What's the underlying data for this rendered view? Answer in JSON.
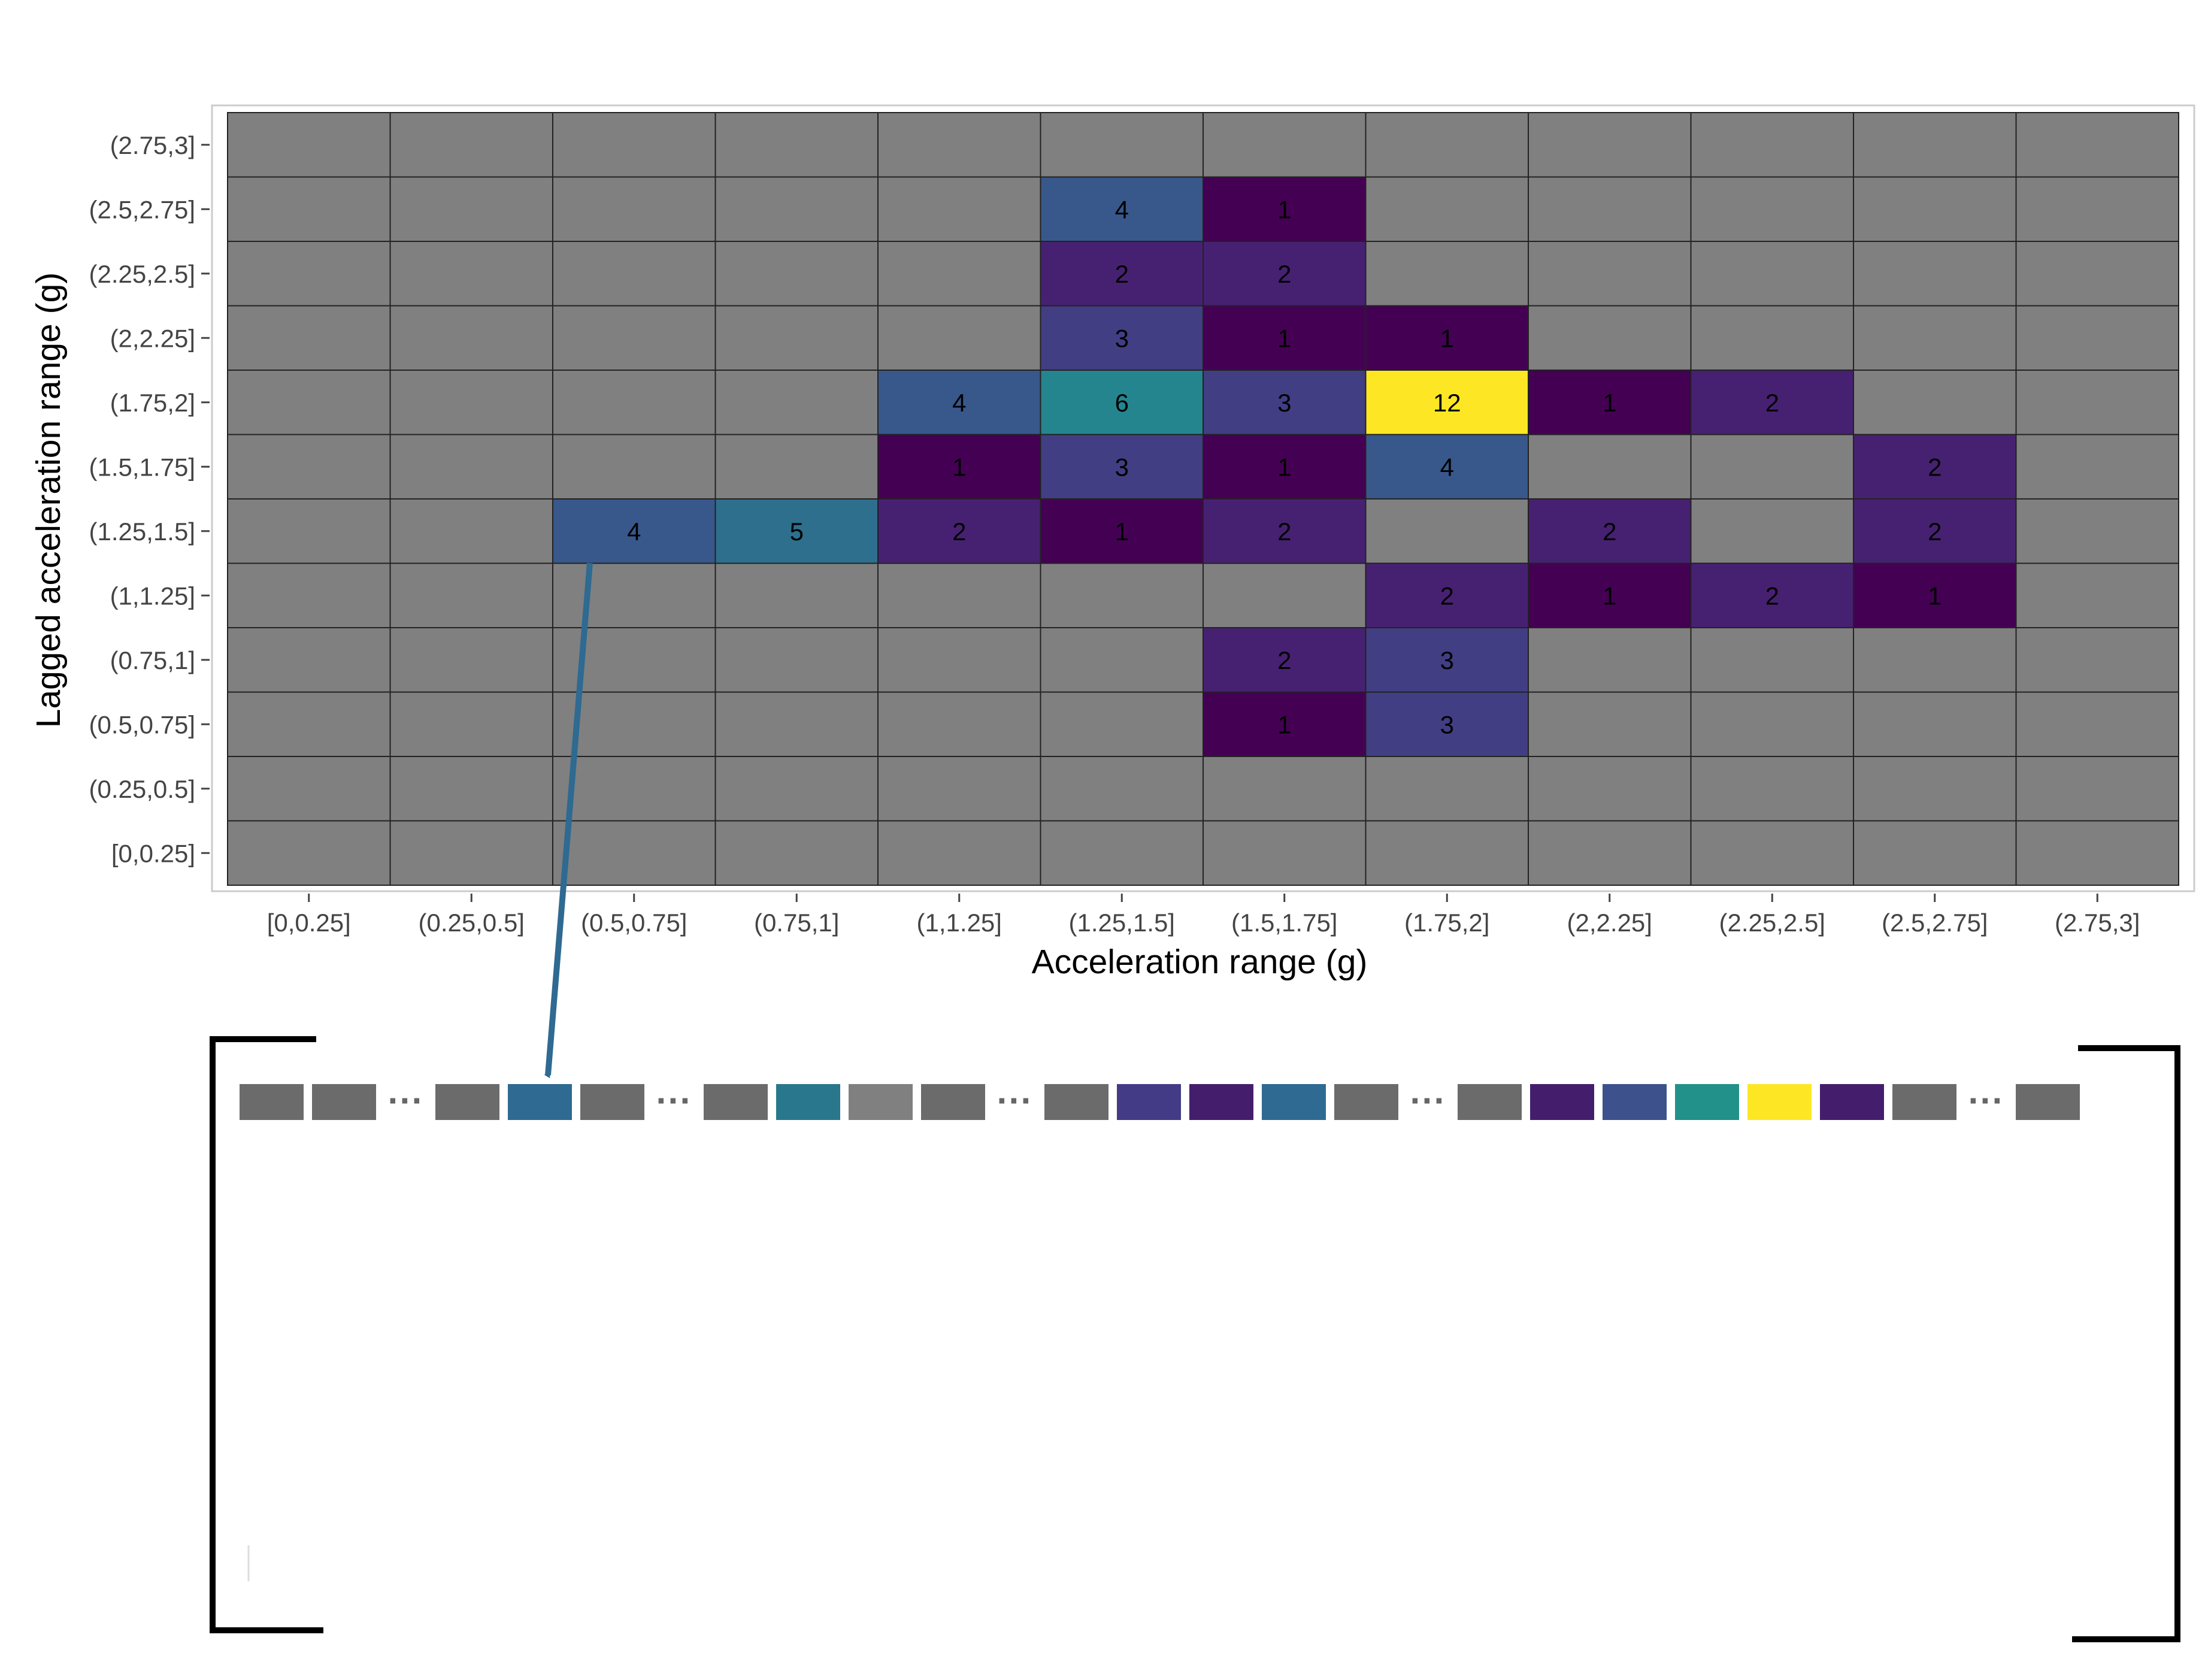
{
  "chart_data": {
    "type": "heatmap",
    "title": "",
    "xlabel": "Acceleration range (g)",
    "ylabel": "Lagged acceleration range (g)",
    "x_categories": [
      "[0,0.25]",
      "(0.25,0.5]",
      "(0.5,0.75]",
      "(0.75,1]",
      "(1,1.25]",
      "(1.25,1.5]",
      "(1.5,1.75]",
      "(1.75,2]",
      "(2,2.25]",
      "(2.25,2.5]",
      "(2.5,2.75]",
      "(2.75,3]"
    ],
    "y_categories": [
      "[0,0.25]",
      "(0.25,0.5]",
      "(0.5,0.75]",
      "(0.75,1]",
      "(1,1.25]",
      "(1.25,1.5]",
      "(1.5,1.75]",
      "(1.75,2]",
      "(2,2.25]",
      "(2.25,2.5]",
      "(2.5,2.75]",
      "(2.75,3]"
    ],
    "empty_color": "#808080",
    "colormap": "viridis",
    "value_range": [
      1,
      12
    ],
    "cells": [
      {
        "x": "(1.25,1.5]",
        "y": "(2.5,2.75]",
        "value": 4
      },
      {
        "x": "(1.5,1.75]",
        "y": "(2.5,2.75]",
        "value": 1
      },
      {
        "x": "(1.25,1.5]",
        "y": "(2.25,2.5]",
        "value": 2
      },
      {
        "x": "(1.5,1.75]",
        "y": "(2.25,2.5]",
        "value": 2
      },
      {
        "x": "(1.25,1.5]",
        "y": "(2,2.25]",
        "value": 3
      },
      {
        "x": "(1.5,1.75]",
        "y": "(2,2.25]",
        "value": 1
      },
      {
        "x": "(1.75,2]",
        "y": "(2,2.25]",
        "value": 1
      },
      {
        "x": "(1,1.25]",
        "y": "(1.75,2]",
        "value": 4
      },
      {
        "x": "(1.25,1.5]",
        "y": "(1.75,2]",
        "value": 6
      },
      {
        "x": "(1.5,1.75]",
        "y": "(1.75,2]",
        "value": 3
      },
      {
        "x": "(1.75,2]",
        "y": "(1.75,2]",
        "value": 12
      },
      {
        "x": "(2,2.25]",
        "y": "(1.75,2]",
        "value": 1
      },
      {
        "x": "(2.25,2.5]",
        "y": "(1.75,2]",
        "value": 2
      },
      {
        "x": "(1,1.25]",
        "y": "(1.5,1.75]",
        "value": 1
      },
      {
        "x": "(1.25,1.5]",
        "y": "(1.5,1.75]",
        "value": 3
      },
      {
        "x": "(1.5,1.75]",
        "y": "(1.5,1.75]",
        "value": 1
      },
      {
        "x": "(1.75,2]",
        "y": "(1.5,1.75]",
        "value": 4
      },
      {
        "x": "(2.5,2.75]",
        "y": "(1.5,1.75]",
        "value": 2
      },
      {
        "x": "(0.5,0.75]",
        "y": "(1.25,1.5]",
        "value": 4
      },
      {
        "x": "(0.75,1]",
        "y": "(1.25,1.5]",
        "value": 5
      },
      {
        "x": "(1,1.25]",
        "y": "(1.25,1.5]",
        "value": 2
      },
      {
        "x": "(1.25,1.5]",
        "y": "(1.25,1.5]",
        "value": 1
      },
      {
        "x": "(1.5,1.75]",
        "y": "(1.25,1.5]",
        "value": 2
      },
      {
        "x": "(2,2.25]",
        "y": "(1.25,1.5]",
        "value": 2
      },
      {
        "x": "(2.5,2.75]",
        "y": "(1.25,1.5]",
        "value": 2
      },
      {
        "x": "(1.75,2]",
        "y": "(1,1.25]",
        "value": 2
      },
      {
        "x": "(2,2.25]",
        "y": "(1,1.25]",
        "value": 1
      },
      {
        "x": "(2.25,2.5]",
        "y": "(1,1.25]",
        "value": 2
      },
      {
        "x": "(2.5,2.75]",
        "y": "(1,1.25]",
        "value": 1
      },
      {
        "x": "(1.5,1.75]",
        "y": "(0.75,1]",
        "value": 2
      },
      {
        "x": "(1.75,2]",
        "y": "(0.75,1]",
        "value": 3
      },
      {
        "x": "(1.5,1.75]",
        "y": "(0.5,0.75]",
        "value": 1
      },
      {
        "x": "(1.75,2]",
        "y": "(0.5,0.75]",
        "value": 3
      }
    ],
    "legend": "none",
    "grid": true,
    "flattened_vector": {
      "groups": [
        [
          "#6b6b6b",
          "#6b6b6b"
        ],
        [
          "#6b6b6b",
          "#2e6a91",
          "#6b6b6b"
        ],
        [
          "#6b6b6b",
          "#29778c",
          "#808080",
          "#6b6b6b"
        ],
        [
          "#6b6b6b",
          "#433b85",
          "#441e6c",
          "#2e6a91",
          "#6b6b6b"
        ],
        [
          "#6b6b6b",
          "#441e6c",
          "#3d528c",
          "#22918a",
          "#fde725",
          "#441e6c",
          "#6b6b6b"
        ],
        [
          "#6b6b6b"
        ]
      ],
      "separator": "···",
      "highlighted": "(0.5,0.75] × (1.25,1.5] = 4"
    }
  }
}
